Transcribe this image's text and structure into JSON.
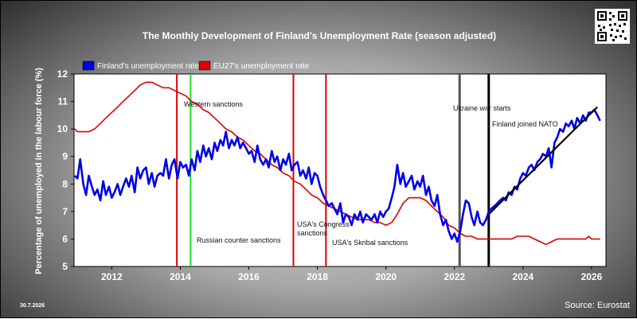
{
  "chart_data": {
    "type": "line",
    "title": "The Monthly Development of Finland's Unemployment Rate (season adjusted)",
    "ylabel": "Percentage of unemployed in the labour force (%)",
    "xlabel": "",
    "xlim": [
      2010.9,
      2026.42
    ],
    "ylim": [
      5,
      12
    ],
    "x_ticks": [
      2012,
      2014,
      2016,
      2018,
      2020,
      2022,
      2024,
      2026
    ],
    "y_ticks": [
      5,
      6,
      7,
      8,
      9,
      10,
      11,
      12
    ],
    "grid": false,
    "legend_placement": "top-left",
    "series": [
      {
        "name": "Finland's unemployment rate",
        "color": "#0000e6",
        "points": [
          [
            2010.92,
            8.3
          ],
          [
            2011.0,
            8.2
          ],
          [
            2011.08,
            8.9
          ],
          [
            2011.17,
            8.0
          ],
          [
            2011.25,
            7.6
          ],
          [
            2011.33,
            8.3
          ],
          [
            2011.42,
            7.9
          ],
          [
            2011.5,
            7.6
          ],
          [
            2011.58,
            7.8
          ],
          [
            2011.67,
            7.4
          ],
          [
            2011.75,
            8.1
          ],
          [
            2011.83,
            7.6
          ],
          [
            2011.92,
            7.9
          ],
          [
            2012.0,
            7.5
          ],
          [
            2012.08,
            7.7
          ],
          [
            2012.17,
            8.0
          ],
          [
            2012.25,
            7.6
          ],
          [
            2012.33,
            7.9
          ],
          [
            2012.42,
            8.2
          ],
          [
            2012.5,
            7.9
          ],
          [
            2012.58,
            8.3
          ],
          [
            2012.67,
            7.7
          ],
          [
            2012.75,
            8.6
          ],
          [
            2012.83,
            8.2
          ],
          [
            2012.92,
            8.5
          ],
          [
            2013.0,
            8.6
          ],
          [
            2013.08,
            8.0
          ],
          [
            2013.17,
            8.4
          ],
          [
            2013.25,
            7.9
          ],
          [
            2013.33,
            8.3
          ],
          [
            2013.42,
            8.4
          ],
          [
            2013.5,
            8.3
          ],
          [
            2013.58,
            8.9
          ],
          [
            2013.67,
            8.2
          ],
          [
            2013.75,
            8.7
          ],
          [
            2013.83,
            8.9
          ],
          [
            2013.92,
            8.2
          ],
          [
            2014.0,
            8.8
          ],
          [
            2014.08,
            8.6
          ],
          [
            2014.17,
            8.7
          ],
          [
            2014.25,
            8.3
          ],
          [
            2014.33,
            8.9
          ],
          [
            2014.42,
            8.5
          ],
          [
            2014.5,
            9.2
          ],
          [
            2014.58,
            8.8
          ],
          [
            2014.67,
            9.4
          ],
          [
            2014.75,
            9.0
          ],
          [
            2014.83,
            9.3
          ],
          [
            2014.92,
            8.9
          ],
          [
            2015.0,
            9.5
          ],
          [
            2015.08,
            9.2
          ],
          [
            2015.17,
            9.6
          ],
          [
            2015.25,
            9.4
          ],
          [
            2015.33,
            9.9
          ],
          [
            2015.42,
            9.3
          ],
          [
            2015.5,
            9.6
          ],
          [
            2015.58,
            9.4
          ],
          [
            2015.67,
            9.7
          ],
          [
            2015.75,
            9.3
          ],
          [
            2015.83,
            9.5
          ],
          [
            2015.92,
            9.3
          ],
          [
            2016.0,
            9.1
          ],
          [
            2016.08,
            9.2
          ],
          [
            2016.17,
            8.8
          ],
          [
            2016.25,
            9.4
          ],
          [
            2016.33,
            8.9
          ],
          [
            2016.42,
            8.7
          ],
          [
            2016.5,
            8.9
          ],
          [
            2016.58,
            8.6
          ],
          [
            2016.67,
            9.2
          ],
          [
            2016.75,
            8.8
          ],
          [
            2016.83,
            9.0
          ],
          [
            2016.92,
            8.5
          ],
          [
            2017.0,
            8.9
          ],
          [
            2017.08,
            8.7
          ],
          [
            2017.17,
            9.1
          ],
          [
            2017.25,
            8.5
          ],
          [
            2017.33,
            8.7
          ],
          [
            2017.42,
            8.8
          ],
          [
            2017.5,
            8.3
          ],
          [
            2017.58,
            8.5
          ],
          [
            2017.67,
            8.2
          ],
          [
            2017.75,
            8.6
          ],
          [
            2017.83,
            8.0
          ],
          [
            2017.92,
            8.4
          ],
          [
            2018.0,
            8.3
          ],
          [
            2018.08,
            7.9
          ],
          [
            2018.17,
            7.6
          ],
          [
            2018.25,
            7.4
          ],
          [
            2018.33,
            7.2
          ],
          [
            2018.42,
            7.3
          ],
          [
            2018.5,
            7.1
          ],
          [
            2018.58,
            6.9
          ],
          [
            2018.67,
            7.3
          ],
          [
            2018.75,
            6.6
          ],
          [
            2018.83,
            6.9
          ],
          [
            2018.92,
            6.8
          ],
          [
            2019.0,
            6.5
          ],
          [
            2019.08,
            6.9
          ],
          [
            2019.17,
            6.7
          ],
          [
            2019.25,
            7.0
          ],
          [
            2019.33,
            6.6
          ],
          [
            2019.42,
            6.9
          ],
          [
            2019.5,
            6.8
          ],
          [
            2019.58,
            6.7
          ],
          [
            2019.67,
            6.9
          ],
          [
            2019.75,
            6.6
          ],
          [
            2019.83,
            7.0
          ],
          [
            2019.92,
            6.8
          ],
          [
            2020.0,
            7.0
          ],
          [
            2020.08,
            7.1
          ],
          [
            2020.17,
            7.5
          ],
          [
            2020.25,
            7.9
          ],
          [
            2020.33,
            8.7
          ],
          [
            2020.42,
            8.0
          ],
          [
            2020.5,
            8.4
          ],
          [
            2020.58,
            7.9
          ],
          [
            2020.67,
            8.1
          ],
          [
            2020.75,
            8.3
          ],
          [
            2020.83,
            7.8
          ],
          [
            2020.92,
            8.1
          ],
          [
            2021.0,
            7.9
          ],
          [
            2021.08,
            8.3
          ],
          [
            2021.17,
            7.6
          ],
          [
            2021.25,
            7.9
          ],
          [
            2021.33,
            7.4
          ],
          [
            2021.42,
            7.2
          ],
          [
            2021.5,
            7.6
          ],
          [
            2021.58,
            6.9
          ],
          [
            2021.67,
            6.5
          ],
          [
            2021.75,
            6.7
          ],
          [
            2021.83,
            6.3
          ],
          [
            2021.92,
            6.0
          ],
          [
            2022.0,
            6.2
          ],
          [
            2022.08,
            5.9
          ],
          [
            2022.17,
            6.3
          ],
          [
            2022.25,
            6.9
          ],
          [
            2022.33,
            7.4
          ],
          [
            2022.42,
            7.3
          ],
          [
            2022.5,
            6.8
          ],
          [
            2022.58,
            6.5
          ],
          [
            2022.67,
            7.0
          ],
          [
            2022.75,
            6.6
          ],
          [
            2022.83,
            6.5
          ],
          [
            2022.92,
            6.7
          ],
          [
            2023.0,
            7.0
          ],
          [
            2023.08,
            7.1
          ],
          [
            2023.17,
            7.2
          ],
          [
            2023.25,
            7.3
          ],
          [
            2023.33,
            7.4
          ],
          [
            2023.42,
            7.5
          ],
          [
            2023.5,
            7.4
          ],
          [
            2023.58,
            7.7
          ],
          [
            2023.67,
            7.6
          ],
          [
            2023.75,
            7.9
          ],
          [
            2023.83,
            7.8
          ],
          [
            2023.92,
            8.2
          ],
          [
            2024.0,
            8.4
          ],
          [
            2024.08,
            8.3
          ],
          [
            2024.17,
            8.6
          ],
          [
            2024.25,
            8.7
          ],
          [
            2024.33,
            8.5
          ],
          [
            2024.42,
            8.8
          ],
          [
            2024.5,
            8.9
          ],
          [
            2024.58,
            9.1
          ],
          [
            2024.67,
            9.0
          ],
          [
            2024.75,
            9.3
          ],
          [
            2024.83,
            8.6
          ],
          [
            2024.92,
            9.5
          ],
          [
            2025.0,
            9.7
          ],
          [
            2025.08,
            10.0
          ],
          [
            2025.17,
            9.9
          ],
          [
            2025.25,
            10.2
          ],
          [
            2025.33,
            10.1
          ],
          [
            2025.42,
            10.3
          ],
          [
            2025.5,
            10.0
          ],
          [
            2025.58,
            10.4
          ],
          [
            2025.67,
            10.2
          ],
          [
            2025.75,
            10.5
          ],
          [
            2025.83,
            10.3
          ],
          [
            2025.92,
            10.6
          ],
          [
            2026.0,
            10.6
          ],
          [
            2026.08,
            10.7
          ],
          [
            2026.17,
            10.5
          ],
          [
            2026.25,
            10.3
          ]
        ]
      },
      {
        "name": "EU27's unemployment rate",
        "color": "#dd0000",
        "points": [
          [
            2010.92,
            10.0
          ],
          [
            2011.0,
            9.9
          ],
          [
            2011.17,
            9.9
          ],
          [
            2011.33,
            9.9
          ],
          [
            2011.5,
            10.0
          ],
          [
            2011.67,
            10.2
          ],
          [
            2011.83,
            10.4
          ],
          [
            2012.0,
            10.6
          ],
          [
            2012.17,
            10.8
          ],
          [
            2012.33,
            11.0
          ],
          [
            2012.5,
            11.2
          ],
          [
            2012.67,
            11.4
          ],
          [
            2012.83,
            11.6
          ],
          [
            2013.0,
            11.7
          ],
          [
            2013.17,
            11.7
          ],
          [
            2013.33,
            11.6
          ],
          [
            2013.5,
            11.5
          ],
          [
            2013.67,
            11.5
          ],
          [
            2013.83,
            11.4
          ],
          [
            2014.0,
            11.3
          ],
          [
            2014.17,
            11.2
          ],
          [
            2014.33,
            11.0
          ],
          [
            2014.5,
            10.9
          ],
          [
            2014.67,
            10.7
          ],
          [
            2014.83,
            10.6
          ],
          [
            2015.0,
            10.4
          ],
          [
            2015.17,
            10.2
          ],
          [
            2015.33,
            10.0
          ],
          [
            2015.5,
            9.9
          ],
          [
            2015.67,
            9.7
          ],
          [
            2015.83,
            9.6
          ],
          [
            2016.0,
            9.4
          ],
          [
            2016.17,
            9.2
          ],
          [
            2016.33,
            9.1
          ],
          [
            2016.5,
            8.9
          ],
          [
            2016.67,
            8.7
          ],
          [
            2016.83,
            8.6
          ],
          [
            2017.0,
            8.4
          ],
          [
            2017.17,
            8.3
          ],
          [
            2017.33,
            8.1
          ],
          [
            2017.5,
            8.0
          ],
          [
            2017.67,
            7.8
          ],
          [
            2017.83,
            7.6
          ],
          [
            2018.0,
            7.5
          ],
          [
            2018.17,
            7.3
          ],
          [
            2018.33,
            7.2
          ],
          [
            2018.5,
            7.1
          ],
          [
            2018.67,
            7.0
          ],
          [
            2018.83,
            6.9
          ],
          [
            2019.0,
            6.8
          ],
          [
            2019.17,
            6.7
          ],
          [
            2019.33,
            6.7
          ],
          [
            2019.5,
            6.7
          ],
          [
            2019.67,
            6.6
          ],
          [
            2019.83,
            6.6
          ],
          [
            2020.0,
            6.5
          ],
          [
            2020.17,
            6.6
          ],
          [
            2020.33,
            6.9
          ],
          [
            2020.5,
            7.3
          ],
          [
            2020.67,
            7.5
          ],
          [
            2020.83,
            7.5
          ],
          [
            2021.0,
            7.5
          ],
          [
            2021.17,
            7.4
          ],
          [
            2021.33,
            7.2
          ],
          [
            2021.5,
            7.0
          ],
          [
            2021.67,
            6.8
          ],
          [
            2021.83,
            6.5
          ],
          [
            2022.0,
            6.4
          ],
          [
            2022.17,
            6.2
          ],
          [
            2022.33,
            6.1
          ],
          [
            2022.5,
            6.1
          ],
          [
            2022.67,
            6.0
          ],
          [
            2022.83,
            6.0
          ],
          [
            2023.0,
            6.0
          ],
          [
            2023.17,
            6.0
          ],
          [
            2023.33,
            6.0
          ],
          [
            2023.5,
            6.0
          ],
          [
            2023.67,
            6.0
          ],
          [
            2023.83,
            6.1
          ],
          [
            2024.0,
            6.1
          ],
          [
            2024.17,
            6.1
          ],
          [
            2024.33,
            6.0
          ],
          [
            2024.5,
            5.9
          ],
          [
            2024.67,
            5.8
          ],
          [
            2024.83,
            5.9
          ],
          [
            2025.0,
            6.0
          ],
          [
            2025.17,
            6.0
          ],
          [
            2025.33,
            6.0
          ],
          [
            2025.5,
            6.0
          ],
          [
            2025.67,
            6.0
          ],
          [
            2025.83,
            6.0
          ],
          [
            2025.92,
            6.1
          ],
          [
            2026.0,
            6.0
          ],
          [
            2026.25,
            6.0
          ]
        ]
      },
      {
        "name": "",
        "color": "#000000",
        "points": [
          [
            2023.0,
            6.9
          ],
          [
            2026.17,
            10.8
          ]
        ]
      }
    ],
    "events": [
      {
        "x": 2013.9,
        "color": "#dd0000",
        "label": "Western sanctions"
      },
      {
        "x": 2014.3,
        "color": "#22dd22",
        "label": "Russian counter sanctions"
      },
      {
        "x": 2017.3,
        "color": "#dd0000",
        "label": "USA's Congress sanctions"
      },
      {
        "x": 2018.25,
        "color": "#dd0000",
        "label": "USA's Skribal sanctions"
      },
      {
        "x": 2022.15,
        "color": "#555555",
        "label": "Ukraine war starts"
      },
      {
        "x": 2023.0,
        "color": "#000000",
        "label": "Finland joined NATO"
      }
    ]
  },
  "footer": {
    "date": "30.7.2026",
    "source": "Source: Eurostat"
  }
}
